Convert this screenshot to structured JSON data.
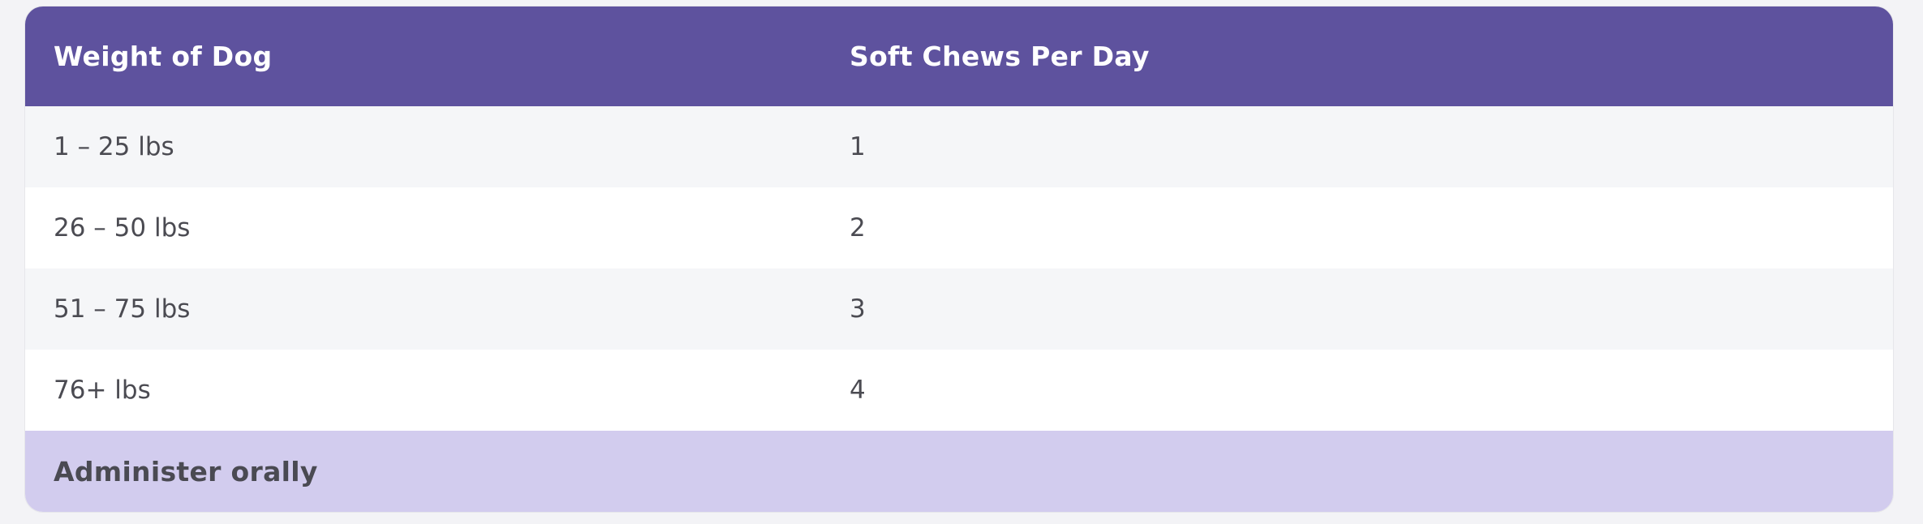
{
  "table": {
    "headers": [
      "Weight of Dog",
      "Soft Chews Per Day"
    ],
    "rows": [
      [
        "1 – 25 lbs",
        "1"
      ],
      [
        "26 – 50 lbs",
        "2"
      ],
      [
        "51 – 75 lbs",
        "3"
      ],
      [
        "76+ lbs",
        "4"
      ]
    ],
    "footer": "Administer orally"
  },
  "colors": {
    "header_bg": "#5e529e",
    "footer_bg": "#d2ccee",
    "row_alt_bg": "#f5f6f8"
  }
}
